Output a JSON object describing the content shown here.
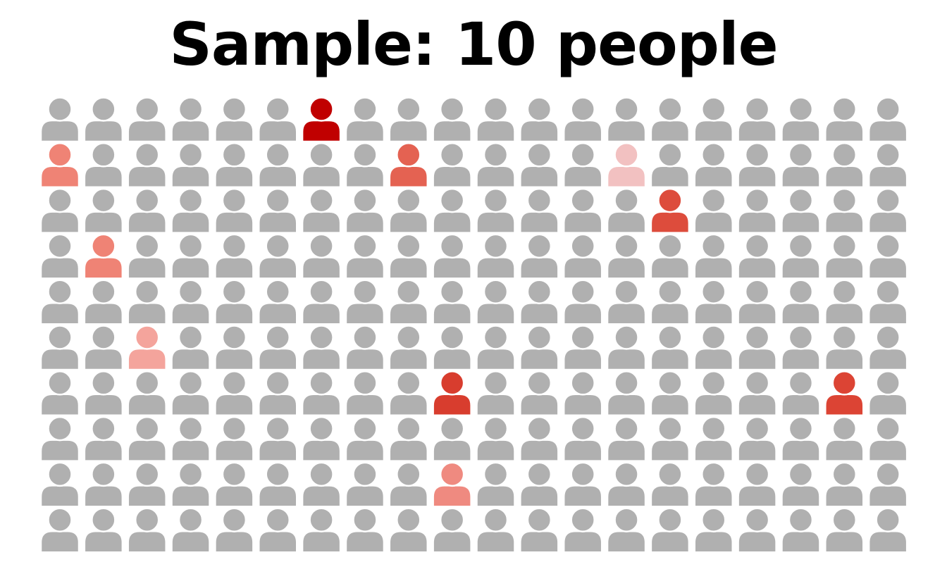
{
  "title": "Sample: 10 people",
  "grid": {
    "columns": 20,
    "rows": 10,
    "total": 200,
    "default_color": "#b0b0b0",
    "highlighted": [
      {
        "row": 1,
        "col": 7,
        "color": "#c00000"
      },
      {
        "row": 2,
        "col": 1,
        "color": "#ef8375"
      },
      {
        "row": 2,
        "col": 9,
        "color": "#e46252"
      },
      {
        "row": 2,
        "col": 14,
        "color": "#f2c1c1"
      },
      {
        "row": 3,
        "col": 15,
        "color": "#dd4c3c"
      },
      {
        "row": 4,
        "col": 2,
        "color": "#ef8375"
      },
      {
        "row": 6,
        "col": 3,
        "color": "#f4a49c"
      },
      {
        "row": 7,
        "col": 10,
        "color": "#d83d2e"
      },
      {
        "row": 7,
        "col": 19,
        "color": "#dc4434"
      },
      {
        "row": 9,
        "col": 10,
        "color": "#ef8a80"
      }
    ]
  }
}
